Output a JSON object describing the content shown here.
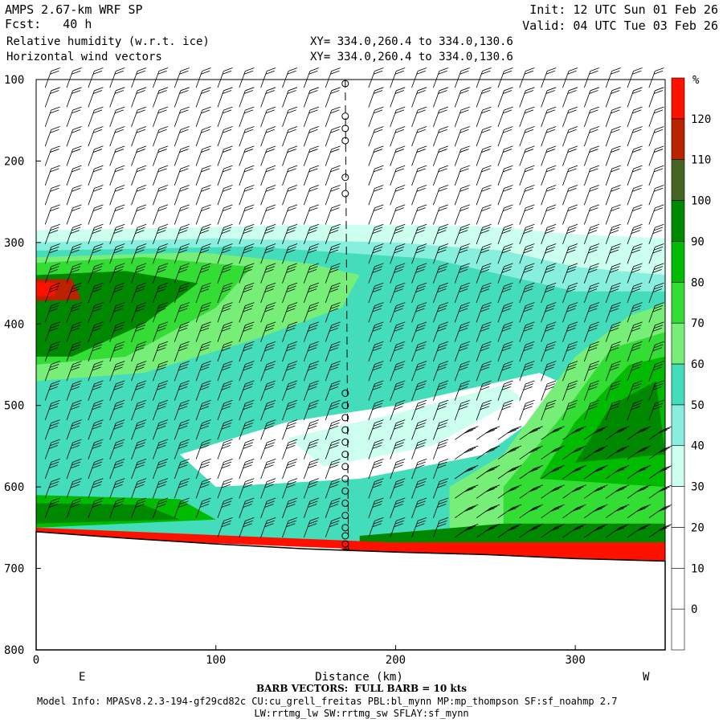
{
  "header": {
    "model": "AMPS 2.67-km WRF SP",
    "forecast": "Fcst:   40 h",
    "field1": "Relative humidity (w.r.t. ice)",
    "field2": "Horizontal wind vectors",
    "init": "Init: 12 UTC Sun 01 Feb 26",
    "valid": "Valid: 04 UTC Tue 03 Feb 26",
    "xy1": "XY= 334.0,260.4 to 334.0,130.6",
    "xy2": "XY= 334.0,260.4 to 334.0,130.6"
  },
  "footer": {
    "barb_note": "BARB VECTORS:  FULL BARB = 10 kts",
    "model_info": "Model Info: MPASv8.2.3-194-gf29cd82c CU:cu_grell_freitas PBL:bl_mynn MP:mp_thompson SF:sf_noahmp 2.7",
    "model_info2": "LW:rrtmg_lw SW:rrtmg_sw SFLAY:sf_mynn"
  },
  "chart_data": {
    "type": "heatmap",
    "title": "Relative humidity (w.r.t. ice)",
    "xlabel": "Distance (km)",
    "ylabel": "",
    "xlim": [
      0,
      350
    ],
    "ylim": [
      800,
      100
    ],
    "x_ticks": [
      0,
      100,
      200,
      300
    ],
    "y_ticks": [
      100,
      200,
      300,
      400,
      500,
      600,
      700,
      800
    ],
    "x_endpoints": {
      "left": "E",
      "right": "W"
    },
    "colorbar": {
      "unit": "%",
      "levels": [
        0,
        10,
        20,
        30,
        40,
        50,
        60,
        70,
        80,
        90,
        100,
        110,
        120
      ],
      "colors": [
        "#ffffff",
        "#ffffff",
        "#ffffff",
        "#ffffff",
        "#ccffee",
        "#88eedd",
        "#44ddbb",
        "#77ee77",
        "#33dd33",
        "#00bb00",
        "#008800",
        "#446622",
        "#bb2200",
        "#ff1100"
      ]
    },
    "terrain_pressure": [
      [
        0,
        655
      ],
      [
        50,
        663
      ],
      [
        100,
        670
      ],
      [
        150,
        676
      ],
      [
        200,
        680
      ],
      [
        250,
        683
      ],
      [
        300,
        688
      ],
      [
        350,
        691
      ]
    ],
    "cross_section_marker_km": 172
  },
  "colors": {
    "terrain": "#ff0000",
    "barb": "#000000"
  }
}
